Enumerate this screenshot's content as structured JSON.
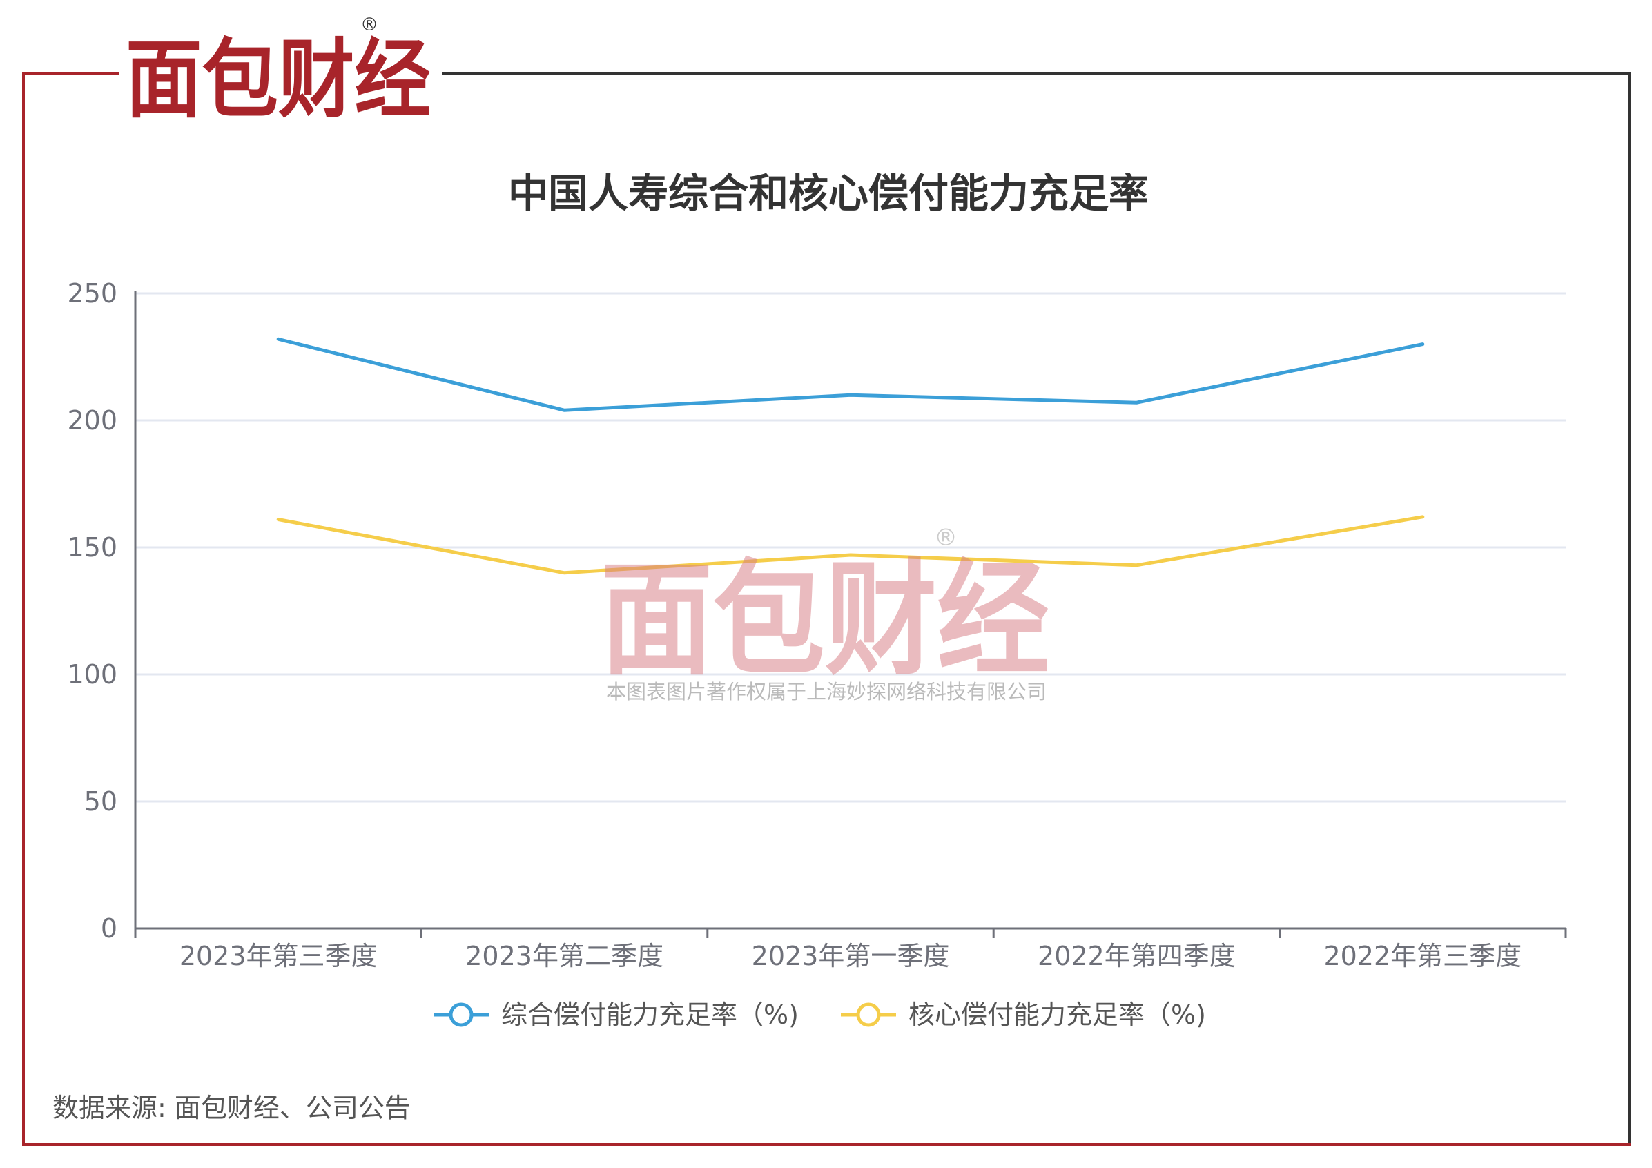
{
  "brand": {
    "logo_text": "面包财经",
    "registered_mark": "®",
    "red": "#a8242a",
    "dark": "#222222"
  },
  "watermark": {
    "logo_text": "面包财经",
    "registered_mark": "®",
    "copyright": "本图表图片著作权属于上海妙探网络科技有限公司"
  },
  "source_note": "数据来源: 面包财经、公司公告",
  "chart_data": {
    "type": "line",
    "title": "中国人寿综合和核心偿付能力充足率",
    "xlabel": "",
    "ylabel": "",
    "categories": [
      "2023年第三季度",
      "2023年第二季度",
      "2023年第一季度",
      "2022年第四季度",
      "2022年第三季度"
    ],
    "series": [
      {
        "name": "综合偿付能力充足率（%)",
        "color": "#3b9fd8",
        "values": [
          232,
          204,
          210,
          207,
          230
        ]
      },
      {
        "name": "核心偿付能力充足率（%)",
        "color": "#f5cd4a",
        "values": [
          161,
          140,
          147,
          143,
          162
        ]
      }
    ],
    "ylim": [
      0,
      250
    ],
    "yticks": [
      0,
      50,
      100,
      150,
      200,
      250
    ],
    "grid": true,
    "legend_position": "bottom-center"
  }
}
